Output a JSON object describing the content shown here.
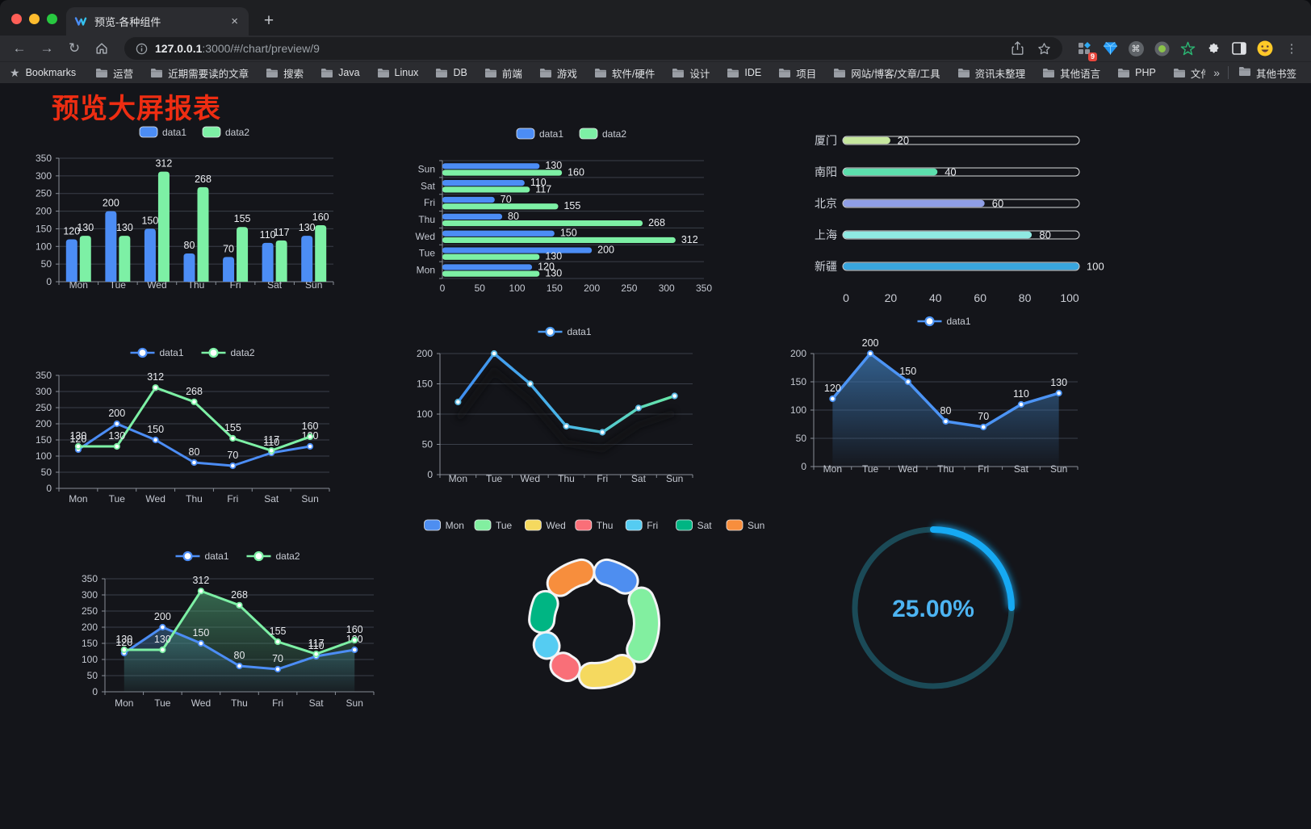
{
  "browser": {
    "tab": {
      "title": "预览-各种组件",
      "close": "×",
      "new_tab": "+"
    },
    "address": {
      "host": "127.0.0.1",
      "path": ":3000/#/chart/preview/9"
    },
    "bookmarks_bar": {
      "star_label": "Bookmarks",
      "folders": [
        "运营",
        "近期需要读的文章",
        "搜索",
        "Java",
        "Linux",
        "DB",
        "前端",
        "游戏",
        "软件/硬件",
        "设计",
        "IDE",
        "项目",
        "网站/博客/文章/工具",
        "资讯未整理",
        "其他语言",
        "PHP",
        "文件服务器"
      ],
      "overflow": "»",
      "other": "其他书签"
    },
    "extensions_badge": "9"
  },
  "page": {
    "title": "预览大屏报表",
    "title_color": "#ee2d12",
    "background": "#14151a"
  },
  "chart_data": [
    {
      "id": "bar-grouped",
      "type": "bar",
      "categories": [
        "Mon",
        "Tue",
        "Wed",
        "Thu",
        "Fri",
        "Sat",
        "Sun"
      ],
      "series": [
        {
          "name": "data1",
          "color": "#4C8DF5",
          "values": [
            120,
            200,
            150,
            80,
            70,
            110,
            130
          ]
        },
        {
          "name": "data2",
          "color": "#7DF0A5",
          "values": [
            130,
            130,
            312,
            268,
            155,
            117,
            160
          ]
        }
      ],
      "ylim": [
        0,
        350
      ],
      "ytick_step": 50,
      "legend_position": "top",
      "grid": true
    },
    {
      "id": "bar-horizontal",
      "type": "bar",
      "orientation": "horizontal",
      "category_axis_note": "Mon at bottom, Sun at top",
      "categories": [
        "Mon",
        "Tue",
        "Wed",
        "Thu",
        "Fri",
        "Sat",
        "Sun"
      ],
      "series": [
        {
          "name": "data1",
          "color": "#4C8DF5",
          "values": [
            120,
            200,
            150,
            80,
            70,
            110,
            130
          ]
        },
        {
          "name": "data2",
          "color": "#7DF0A5",
          "values": [
            130,
            130,
            312,
            268,
            155,
            117,
            160
          ]
        }
      ],
      "xlim": [
        0,
        350
      ],
      "xtick_step": 50,
      "legend_position": "top",
      "grid": true
    },
    {
      "id": "city-progress",
      "type": "bar",
      "orientation": "horizontal-progress",
      "items": [
        {
          "label": "厦门",
          "value": 20,
          "color": "#C6E79E"
        },
        {
          "label": "南阳",
          "value": 40,
          "color": "#5CDFAD"
        },
        {
          "label": "北京",
          "value": 60,
          "color": "#8F9EE6"
        },
        {
          "label": "上海",
          "value": 80,
          "color": "#8FE9E2"
        },
        {
          "label": "新疆",
          "value": 100,
          "color": "#39A6DE"
        }
      ],
      "xlim": [
        0,
        100
      ],
      "xticks": [
        0,
        20,
        40,
        60,
        80,
        100
      ]
    },
    {
      "id": "line-two",
      "type": "line",
      "categories": [
        "Mon",
        "Tue",
        "Wed",
        "Thu",
        "Fri",
        "Sat",
        "Sun"
      ],
      "series": [
        {
          "name": "data1",
          "color": "#4C8DF5",
          "values": [
            120,
            200,
            150,
            80,
            70,
            110,
            130
          ]
        },
        {
          "name": "data2",
          "color": "#7DF0A5",
          "values": [
            130,
            130,
            312,
            268,
            155,
            117,
            160
          ]
        }
      ],
      "ylim": [
        0,
        350
      ],
      "ytick_step": 50,
      "legend_position": "top",
      "grid": true
    },
    {
      "id": "line-gradient",
      "type": "line",
      "categories": [
        "Mon",
        "Tue",
        "Wed",
        "Thu",
        "Fri",
        "Sat",
        "Sun"
      ],
      "series": [
        {
          "name": "data1",
          "gradient": [
            "#3F8EF2",
            "#49B7E8",
            "#67E8A5"
          ],
          "values": [
            120,
            200,
            150,
            80,
            70,
            110,
            130
          ]
        }
      ],
      "ylim": [
        0,
        200
      ],
      "ytick_step": 50,
      "legend_position": "top",
      "grid": true
    },
    {
      "id": "area-one",
      "type": "area",
      "categories": [
        "Mon",
        "Tue",
        "Wed",
        "Thu",
        "Fri",
        "Sat",
        "Sun"
      ],
      "series": [
        {
          "name": "data1",
          "color": "#4C94F5",
          "fill": "#3C78B4",
          "values": [
            120,
            200,
            150,
            80,
            70,
            110,
            130
          ]
        }
      ],
      "ylim": [
        0,
        200
      ],
      "ytick_step": 50,
      "legend_position": "top",
      "grid": true
    },
    {
      "id": "area-two",
      "type": "area",
      "categories": [
        "Mon",
        "Tue",
        "Wed",
        "Thu",
        "Fri",
        "Sat",
        "Sun"
      ],
      "series": [
        {
          "name": "data1",
          "color": "#4C8DF5",
          "fill": "#3C6E9B",
          "values": [
            120,
            200,
            150,
            80,
            70,
            110,
            130
          ]
        },
        {
          "name": "data2",
          "color": "#7DF0A5",
          "fill": "#4FA877",
          "values": [
            130,
            130,
            312,
            268,
            155,
            117,
            160
          ]
        }
      ],
      "ylim": [
        0,
        350
      ],
      "ytick_step": 50,
      "legend_position": "top",
      "grid": true
    },
    {
      "id": "donut-week",
      "type": "pie",
      "labels": [
        "Mon",
        "Tue",
        "Wed",
        "Thu",
        "Fri",
        "Sat",
        "Sun"
      ],
      "values": [
        120,
        200,
        150,
        80,
        70,
        110,
        130
      ],
      "colors": [
        "#4E8EF0",
        "#82EFA0",
        "#F5D95F",
        "#F96F78",
        "#55CCF2",
        "#00B583",
        "#F78E3D"
      ],
      "inner_radius_ratio": 0.63,
      "legend_position": "top"
    },
    {
      "id": "gauge-percent",
      "type": "gauge",
      "percent": 25,
      "label": "25.00%",
      "track_color": "#1B4A57",
      "bar_color": "#16A9F3",
      "label_color": "#4DB4F2"
    }
  ]
}
